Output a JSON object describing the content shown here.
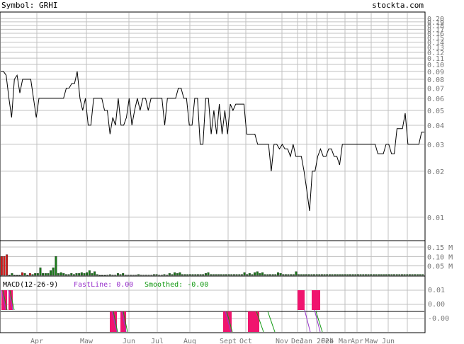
{
  "header": {
    "symbol_label": "Symbol: GRHI",
    "site_label": "stockta.com"
  },
  "macd_panel": {
    "title": "MACD(12-26-9)",
    "fast_label": "FastLine: 0.00",
    "smooth_label": "Smoothed: -0.00",
    "ticks": [
      "0.01",
      "0.00",
      "-0.00"
    ]
  },
  "colors": {
    "price_line": "#000000",
    "vol_up": "#1a7a1a",
    "vol_down": "#dd1c1c",
    "macd_hist": "#f0146e",
    "fast_line": "#9933cc",
    "smooth_line": "#119911",
    "grid": "#c0c0c0",
    "text_gray": "#777777"
  },
  "chart_data": [
    {
      "type": "line",
      "name": "price",
      "yscale": "log",
      "ylim": [
        0.0071,
        0.218
      ],
      "y_ticks": [
        "0.01",
        "0.02",
        "0.03",
        "0.04",
        "0.05",
        "0.06",
        "0.07",
        "0.08",
        "0.09",
        "0.10",
        "0.11",
        "0.12",
        "0.13",
        "0.14",
        "0.15",
        "0.16",
        "0.17",
        "0.18",
        "0.19",
        "0.20"
      ],
      "x_labels": [
        "Apr",
        "Maw",
        "Jun",
        "Jul",
        "Aug",
        "Sept",
        "Oct",
        "Nov",
        "Dec",
        "Jan 2024",
        "Feb",
        "Mar",
        "Apr",
        "Maw",
        "Jun"
      ],
      "values": [
        0.09,
        0.09,
        0.085,
        0.06,
        0.045,
        0.08,
        0.085,
        0.065,
        0.08,
        0.08,
        0.08,
        0.08,
        0.06,
        0.045,
        0.06,
        0.06,
        0.06,
        0.06,
        0.06,
        0.06,
        0.06,
        0.06,
        0.06,
        0.06,
        0.07,
        0.07,
        0.075,
        0.075,
        0.09,
        0.06,
        0.05,
        0.06,
        0.04,
        0.04,
        0.06,
        0.06,
        0.06,
        0.06,
        0.05,
        0.05,
        0.035,
        0.045,
        0.04,
        0.06,
        0.04,
        0.04,
        0.045,
        0.06,
        0.04,
        0.05,
        0.06,
        0.05,
        0.06,
        0.06,
        0.05,
        0.06,
        0.06,
        0.06,
        0.06,
        0.06,
        0.04,
        0.06,
        0.06,
        0.06,
        0.06,
        0.07,
        0.07,
        0.06,
        0.06,
        0.04,
        0.04,
        0.06,
        0.06,
        0.03,
        0.03,
        0.06,
        0.06,
        0.035,
        0.05,
        0.035,
        0.055,
        0.035,
        0.05,
        0.035,
        0.055,
        0.05,
        0.055,
        0.055,
        0.055,
        0.055,
        0.035,
        0.035,
        0.035,
        0.035,
        0.03,
        0.03,
        0.03,
        0.03,
        0.03,
        0.02,
        0.03,
        0.03,
        0.028,
        0.03,
        0.028,
        0.028,
        0.025,
        0.03,
        0.025,
        0.025,
        0.025,
        0.02,
        0.015,
        0.011,
        0.02,
        0.02,
        0.025,
        0.028,
        0.025,
        0.025,
        0.028,
        0.028,
        0.025,
        0.025,
        0.022,
        0.03,
        0.03,
        0.03,
        0.03,
        0.03,
        0.03,
        0.03,
        0.03,
        0.03,
        0.03,
        0.03,
        0.03,
        0.03,
        0.026,
        0.026,
        0.026,
        0.03,
        0.03,
        0.026,
        0.026,
        0.038,
        0.038,
        0.038,
        0.048,
        0.03,
        0.03,
        0.03,
        0.03,
        0.03,
        0.036,
        0.036
      ]
    },
    {
      "type": "bar",
      "name": "volume",
      "y_ticks": [
        "0.05 M",
        "0.10 M",
        "0.15 M"
      ],
      "ylim": [
        0,
        0.18
      ],
      "values_millions": [
        0.1,
        0.1,
        0.11,
        0.001,
        0.01,
        0.001,
        0.001,
        0.001,
        0.015,
        0.01,
        0.001,
        0.01,
        0.005,
        0.01,
        0.01,
        0.04,
        0.01,
        0.01,
        0.01,
        0.025,
        0.04,
        0.1,
        0.01,
        0.015,
        0.01,
        0.005,
        0.005,
        0.01,
        0.005,
        0.01,
        0.01,
        0.015,
        0.01,
        0.015,
        0.025,
        0.01,
        0.02,
        0.005,
        0.001,
        0.001,
        0.001,
        0.002,
        0.004,
        0.002,
        0.002,
        0.01,
        0.005,
        0.01,
        0.002,
        0.002,
        0.002,
        0.002,
        0.002,
        0.005,
        0.002,
        0.002,
        0.002,
        0.002,
        0.002,
        0.005,
        0.005,
        0.002,
        0.002,
        0.005,
        0.002,
        0.01,
        0.005,
        0.015,
        0.01,
        0.015,
        0.005,
        0.005,
        0.005,
        0.005,
        0.005,
        0.005,
        0.005,
        0.005,
        0.005,
        0.01,
        0.015,
        0.005,
        0.005,
        0.005,
        0.005,
        0.005,
        0.005,
        0.005,
        0.005,
        0.005,
        0.005,
        0.005,
        0.005,
        0.005,
        0.015,
        0.005,
        0.01,
        0.005,
        0.015,
        0.02,
        0.01,
        0.015,
        0.005,
        0.005,
        0.005,
        0.005,
        0.005,
        0.015,
        0.01,
        0.005,
        0.005,
        0.005,
        0.005,
        0.005,
        0.02,
        0.005,
        0.005,
        0.005,
        0.005,
        0.005,
        0.005,
        0.005,
        0.005,
        0.005,
        0.005,
        0.005,
        0.005,
        0.005,
        0.005,
        0.005,
        0.005,
        0.005,
        0.005,
        0.005,
        0.005,
        0.005,
        0.005,
        0.005,
        0.005,
        0.005,
        0.005,
        0.005,
        0.005,
        0.005,
        0.005,
        0.005,
        0.005,
        0.005,
        0.005,
        0.005,
        0.005,
        0.005,
        0.005,
        0.005,
        0.005,
        0.005,
        0.005,
        0.005,
        0.005,
        0.005,
        0.005,
        0.005,
        0.005,
        0.005
      ],
      "down_flags": [
        1,
        1,
        1,
        0,
        0,
        0,
        0,
        0,
        1,
        0,
        0,
        1,
        0,
        0,
        0,
        0,
        0,
        0,
        0,
        0,
        0,
        0,
        0,
        0,
        0,
        0,
        0,
        0,
        0,
        0,
        0,
        0,
        0,
        0,
        0,
        0,
        0,
        0,
        0,
        0,
        0,
        0,
        0,
        0,
        0,
        0,
        0,
        0,
        0,
        0,
        0,
        0,
        0,
        0,
        0,
        0,
        0,
        0,
        0,
        0,
        0,
        0,
        0,
        0,
        0,
        0,
        0,
        0,
        0,
        0,
        0,
        0,
        0,
        0,
        0,
        0,
        0,
        0,
        0,
        0,
        0,
        0,
        0,
        0,
        0,
        0,
        0,
        0,
        0,
        0,
        0,
        0,
        0,
        0,
        0,
        0,
        0,
        0,
        0,
        0,
        0,
        0,
        0,
        0,
        0,
        0,
        0,
        0,
        0,
        0,
        0,
        0,
        0,
        0,
        0,
        0,
        0,
        0,
        0,
        0,
        0,
        0,
        0,
        0,
        0,
        0,
        0,
        0,
        0,
        0,
        0,
        0,
        0,
        0,
        0,
        0,
        0,
        0,
        0,
        0,
        0,
        0,
        0,
        0,
        0,
        0,
        0,
        0,
        0,
        0,
        0,
        0,
        0,
        0,
        0,
        0,
        0,
        0,
        0,
        0,
        0,
        0,
        0,
        0
      ]
    }
  ]
}
